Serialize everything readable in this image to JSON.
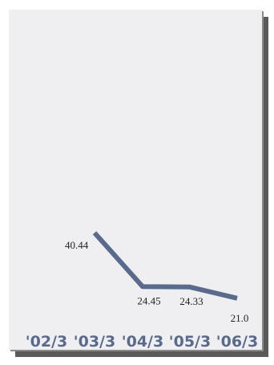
{
  "chart_data": {
    "type": "line",
    "categories": [
      "'02/3",
      "'03/3",
      "'04/3",
      "'05/3",
      "'06/3"
    ],
    "series": [
      {
        "values": [
          null,
          40.44,
          24.45,
          24.33,
          21.0
        ],
        "data_labels": [
          "",
          "40.44",
          "24.45",
          "24.33",
          "21.0"
        ],
        "color": "#5a6a8c"
      }
    ],
    "title": "",
    "xlabel": "",
    "ylabel": "",
    "ylim": [
      0,
      100
    ],
    "grid": false,
    "legend": "none"
  },
  "colors": {
    "line": "#5a6a8c",
    "panel": "#efeff1",
    "shadow": "#5a5a5a",
    "tick_text": "#5a6a8c",
    "value_text": "#222222"
  }
}
